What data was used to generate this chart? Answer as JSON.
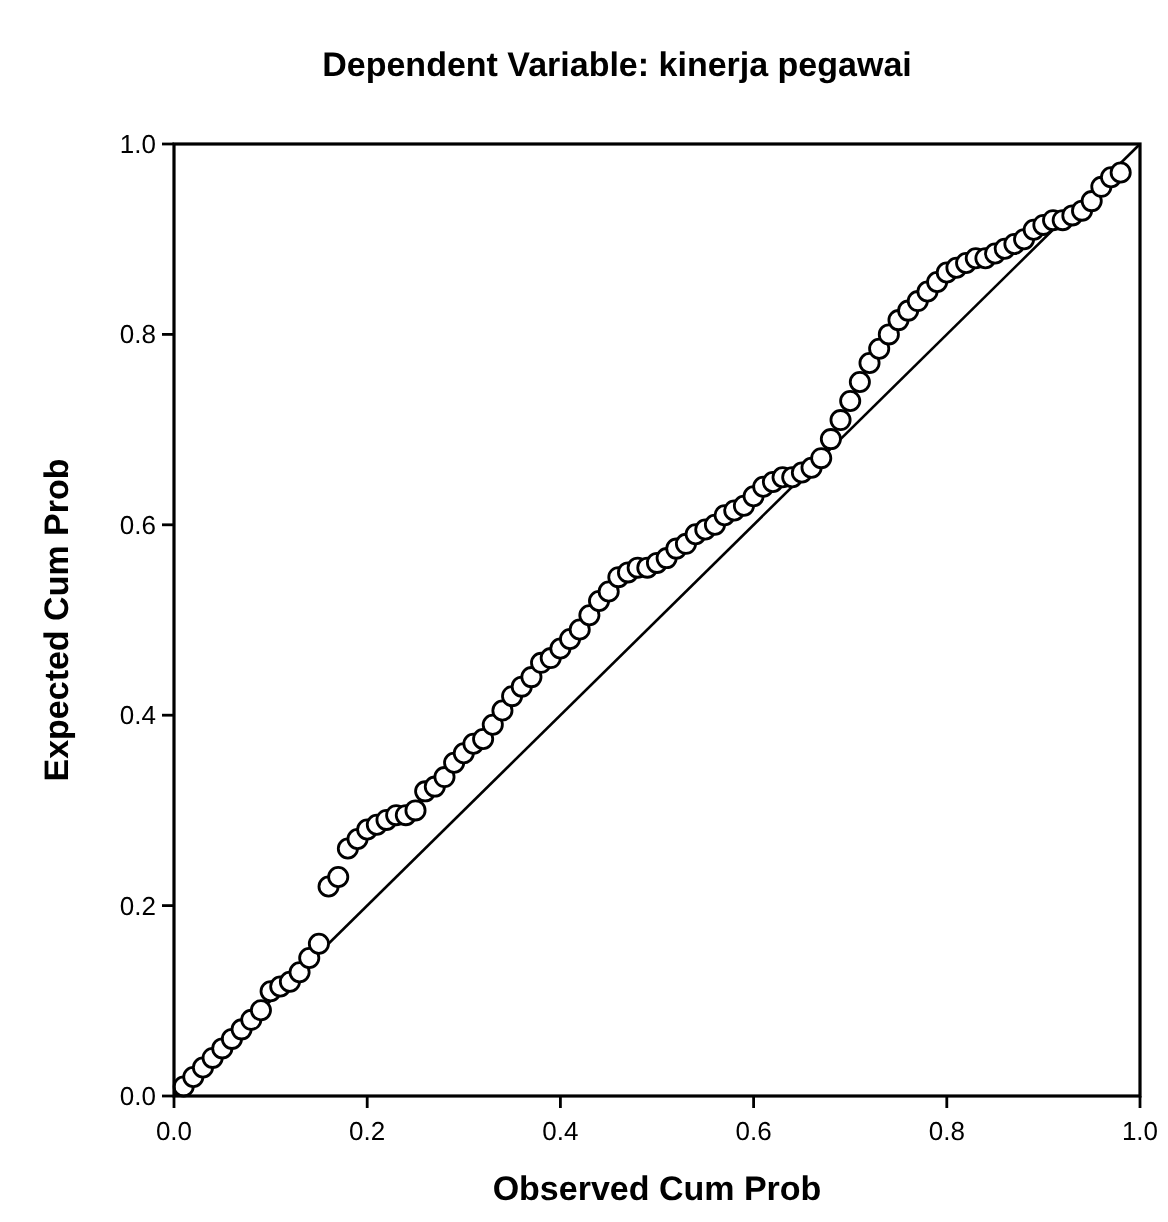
{
  "chart_data": {
    "type": "scatter",
    "title": "Dependent Variable: kinerja pegawai",
    "xlabel": "Observed Cum Prob",
    "ylabel": "Expected Cum Prob",
    "xlim": [
      0,
      1
    ],
    "ylim": [
      0,
      1
    ],
    "xticks": [
      {
        "value": 0,
        "label": "0.0"
      },
      {
        "value": 0.2,
        "label": "0.2"
      },
      {
        "value": 0.4,
        "label": "0.4"
      },
      {
        "value": 0.6,
        "label": "0.6"
      },
      {
        "value": 0.8,
        "label": "0.8"
      },
      {
        "value": 1,
        "label": "1.0"
      }
    ],
    "yticks": [
      {
        "value": 0,
        "label": "0.0"
      },
      {
        "value": 0.2,
        "label": "0.2"
      },
      {
        "value": 0.4,
        "label": "0.4"
      },
      {
        "value": 0.6,
        "label": "0.6"
      },
      {
        "value": 0.8,
        "label": "0.8"
      },
      {
        "value": 1,
        "label": "1.0"
      }
    ],
    "grid": false,
    "marker": "circle",
    "series": [
      {
        "color": "#000000",
        "x": [
          0.01,
          0.02,
          0.03,
          0.04,
          0.05,
          0.06,
          0.07,
          0.08,
          0.09,
          0.1,
          0.11,
          0.12,
          0.13,
          0.14,
          0.15,
          0.16,
          0.17,
          0.18,
          0.19,
          0.2,
          0.21,
          0.22,
          0.23,
          0.24,
          0.25,
          0.26,
          0.27,
          0.28,
          0.29,
          0.3,
          0.31,
          0.32,
          0.33,
          0.34,
          0.35,
          0.36,
          0.37,
          0.38,
          0.39,
          0.4,
          0.41,
          0.42,
          0.43,
          0.44,
          0.45,
          0.46,
          0.47,
          0.48,
          0.49,
          0.5,
          0.51,
          0.52,
          0.53,
          0.54,
          0.55,
          0.56,
          0.57,
          0.58,
          0.59,
          0.6,
          0.61,
          0.62,
          0.63,
          0.64,
          0.65,
          0.66,
          0.67,
          0.68,
          0.69,
          0.7,
          0.71,
          0.72,
          0.73,
          0.74,
          0.75,
          0.76,
          0.77,
          0.78,
          0.79,
          0.8,
          0.81,
          0.82,
          0.83,
          0.84,
          0.85,
          0.86,
          0.87,
          0.88,
          0.89,
          0.9,
          0.91,
          0.92,
          0.93,
          0.94,
          0.95,
          0.96,
          0.97,
          0.98
        ],
        "values": [
          0.01,
          0.02,
          0.03,
          0.04,
          0.05,
          0.06,
          0.07,
          0.08,
          0.09,
          0.11,
          0.115,
          0.12,
          0.13,
          0.145,
          0.16,
          0.22,
          0.23,
          0.26,
          0.27,
          0.28,
          0.285,
          0.29,
          0.295,
          0.295,
          0.3,
          0.32,
          0.325,
          0.335,
          0.35,
          0.36,
          0.37,
          0.375,
          0.39,
          0.405,
          0.42,
          0.43,
          0.44,
          0.455,
          0.46,
          0.47,
          0.48,
          0.49,
          0.505,
          0.52,
          0.53,
          0.545,
          0.55,
          0.555,
          0.555,
          0.56,
          0.565,
          0.575,
          0.58,
          0.59,
          0.595,
          0.6,
          0.61,
          0.615,
          0.62,
          0.63,
          0.64,
          0.645,
          0.65,
          0.65,
          0.655,
          0.66,
          0.67,
          0.69,
          0.71,
          0.73,
          0.75,
          0.77,
          0.785,
          0.8,
          0.815,
          0.825,
          0.835,
          0.845,
          0.855,
          0.865,
          0.87,
          0.875,
          0.88,
          0.88,
          0.885,
          0.89,
          0.895,
          0.9,
          0.91,
          0.915,
          0.92,
          0.92,
          0.925,
          0.93,
          0.94,
          0.955,
          0.965,
          0.97
        ]
      },
      {
        "type": "line",
        "marker": "none",
        "color": "#000000",
        "x": [
          0,
          1
        ],
        "values": [
          0,
          1
        ]
      }
    ]
  }
}
